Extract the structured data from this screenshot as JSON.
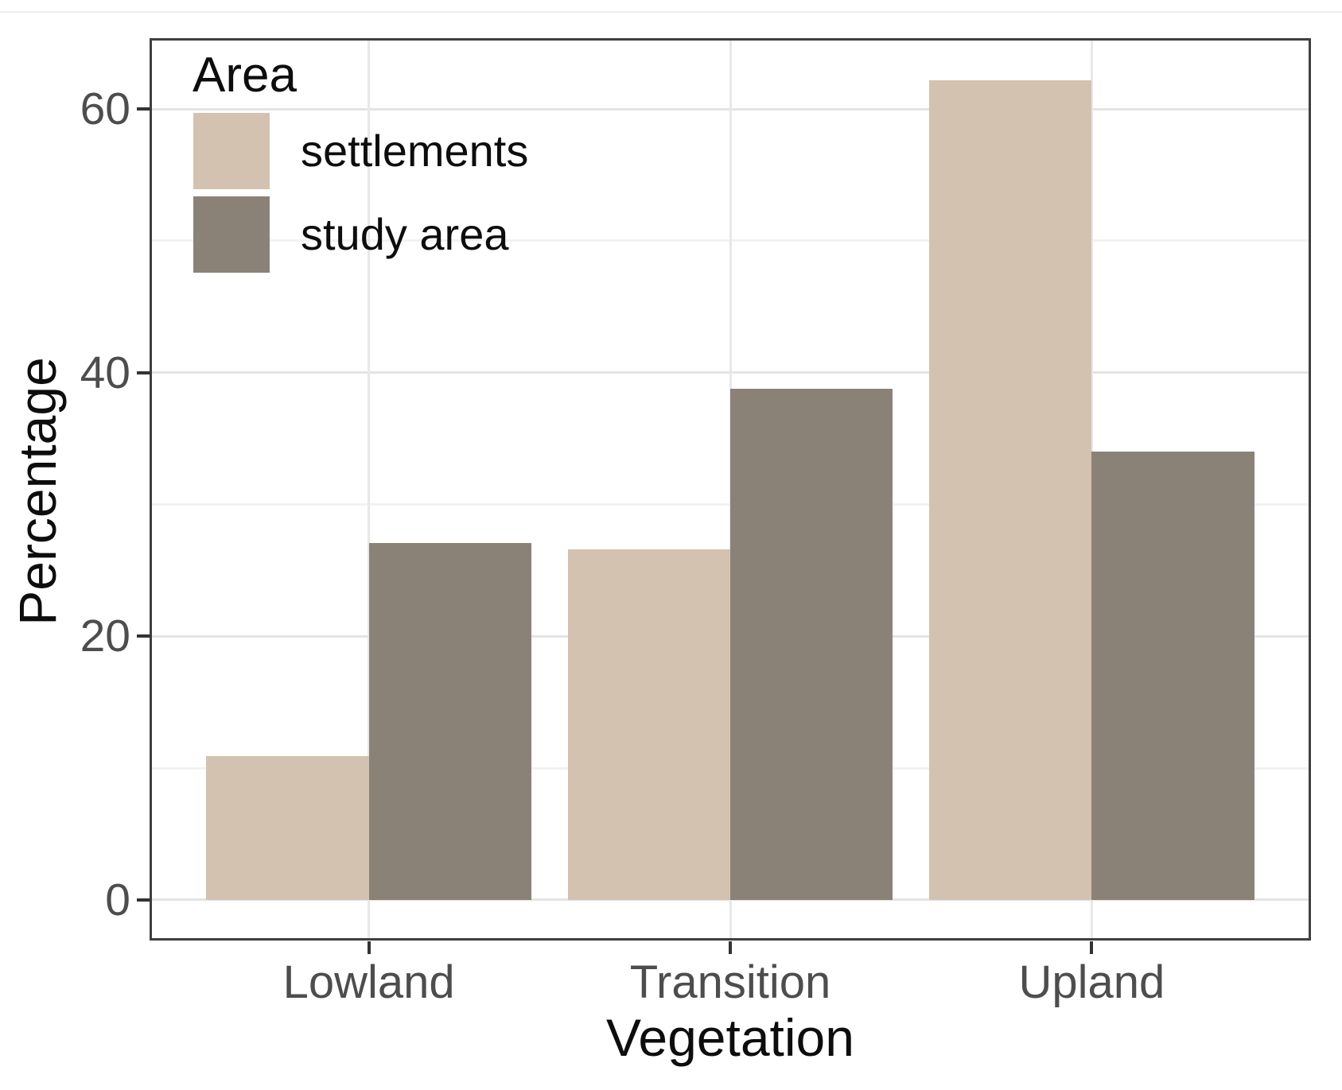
{
  "chart_data": {
    "type": "bar",
    "title": "",
    "categories": [
      "Lowland",
      "Transition",
      "Upland"
    ],
    "series": [
      {
        "name": "settlements",
        "color": "#d3c2b0",
        "values": [
          10.9,
          26.6,
          62.2
        ]
      },
      {
        "name": "study area",
        "color": "#8b8277",
        "values": [
          27.1,
          38.8,
          34.0
        ]
      }
    ],
    "xlabel": "Vegetation",
    "ylabel": "Percentage",
    "y_ticks": [
      0,
      20,
      40,
      60
    ],
    "y_minor_ticks": [
      10,
      30,
      50
    ],
    "ylim": [
      -2.9,
      65.2
    ],
    "bar_group_width_fraction": 0.9,
    "legend_title": "Area",
    "legend_position": "top-left-inside",
    "grid": true,
    "colors": {
      "panel_border": "#3f3f3f",
      "major_grid": "#e4e4e4",
      "minor_grid": "#f2f2f2",
      "tick_mark": "#333333",
      "tick_label": "#4d4d4d",
      "axis_title": "#0d0d0d",
      "background": "#ffffff"
    }
  }
}
